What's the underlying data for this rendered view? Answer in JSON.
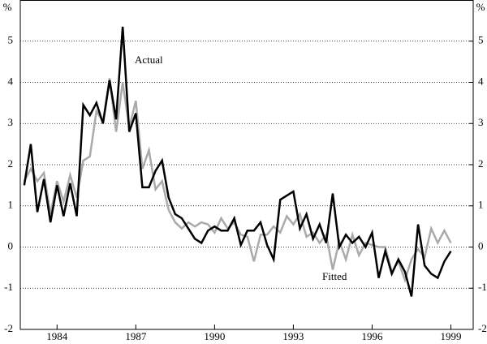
{
  "chart_data": {
    "type": "line",
    "y_label": "%",
    "y2_label": "%",
    "annotations": [
      "Actual",
      "Fitted"
    ],
    "x": [
      1982.75,
      1983.0,
      1983.25,
      1983.5,
      1983.75,
      1984.0,
      1984.25,
      1984.5,
      1984.75,
      1985.0,
      1985.25,
      1985.5,
      1985.75,
      1986.0,
      1986.25,
      1986.5,
      1986.75,
      1987.0,
      1987.25,
      1987.5,
      1987.75,
      1988.0,
      1988.25,
      1988.5,
      1988.75,
      1989.0,
      1989.25,
      1989.5,
      1989.75,
      1990.0,
      1990.25,
      1990.5,
      1990.75,
      1991.0,
      1991.25,
      1991.5,
      1991.75,
      1992.0,
      1992.25,
      1992.5,
      1992.75,
      1993.0,
      1993.25,
      1993.5,
      1993.75,
      1994.0,
      1994.25,
      1994.5,
      1994.75,
      1995.0,
      1995.25,
      1995.5,
      1995.75,
      1996.0,
      1996.25,
      1996.5,
      1996.75,
      1997.0,
      1997.25,
      1997.5,
      1997.75,
      1998.0,
      1998.25,
      1998.5,
      1998.75,
      1999.0
    ],
    "series": [
      {
        "name": "Actual",
        "color": "#000000",
        "values": [
          1.5,
          2.5,
          0.85,
          1.65,
          0.6,
          1.5,
          0.75,
          1.55,
          0.75,
          3.45,
          3.2,
          3.5,
          3.0,
          4.05,
          3.1,
          5.35,
          2.8,
          3.25,
          1.45,
          1.45,
          1.85,
          2.1,
          1.2,
          0.8,
          0.7,
          0.45,
          0.2,
          0.1,
          0.4,
          0.5,
          0.4,
          0.4,
          0.7,
          0.05,
          0.4,
          0.4,
          0.6,
          0.05,
          -0.3,
          1.15,
          1.25,
          1.35,
          0.45,
          0.8,
          0.2,
          0.55,
          0.1,
          1.3,
          0.0,
          0.3,
          0.1,
          0.25,
          0.0,
          0.35,
          -0.75,
          -0.1,
          -0.65,
          -0.3,
          -0.6,
          -1.2,
          0.55,
          -0.45,
          -0.65,
          -0.75,
          -0.35,
          -0.1
        ]
      },
      {
        "name": "Fitted",
        "color": "#aaaaaa",
        "values": [
          1.6,
          1.9,
          1.6,
          1.8,
          0.8,
          1.6,
          1.1,
          1.75,
          1.2,
          2.1,
          2.2,
          3.3,
          3.05,
          4.1,
          2.8,
          4.0,
          2.9,
          3.55,
          1.9,
          2.35,
          1.4,
          1.6,
          0.9,
          0.6,
          0.45,
          0.6,
          0.5,
          0.6,
          0.55,
          0.35,
          0.7,
          0.45,
          0.6,
          0.3,
          0.25,
          -0.35,
          0.3,
          0.3,
          0.5,
          0.35,
          0.75,
          0.55,
          0.8,
          0.25,
          0.35,
          0.1,
          0.3,
          -0.55,
          0.15,
          -0.3,
          0.3,
          -0.2,
          0.1,
          0.05,
          0.0,
          0.0,
          -0.6,
          -0.35,
          -0.8,
          -0.3,
          -0.05,
          -0.25,
          0.45,
          0.1,
          0.4,
          0.1
        ]
      }
    ],
    "xlim": [
      1982.6,
      1999.85
    ],
    "xticks": [
      1984,
      1987,
      1990,
      1993,
      1996,
      1999
    ],
    "ylim": [
      -2,
      6
    ],
    "yticks": [
      -2,
      -1,
      0,
      1,
      2,
      3,
      4,
      5
    ],
    "y2lim": [
      -2,
      6
    ],
    "y2ticks": [
      -2,
      -1,
      0,
      1,
      2,
      3,
      4,
      5
    ],
    "grid": true
  }
}
